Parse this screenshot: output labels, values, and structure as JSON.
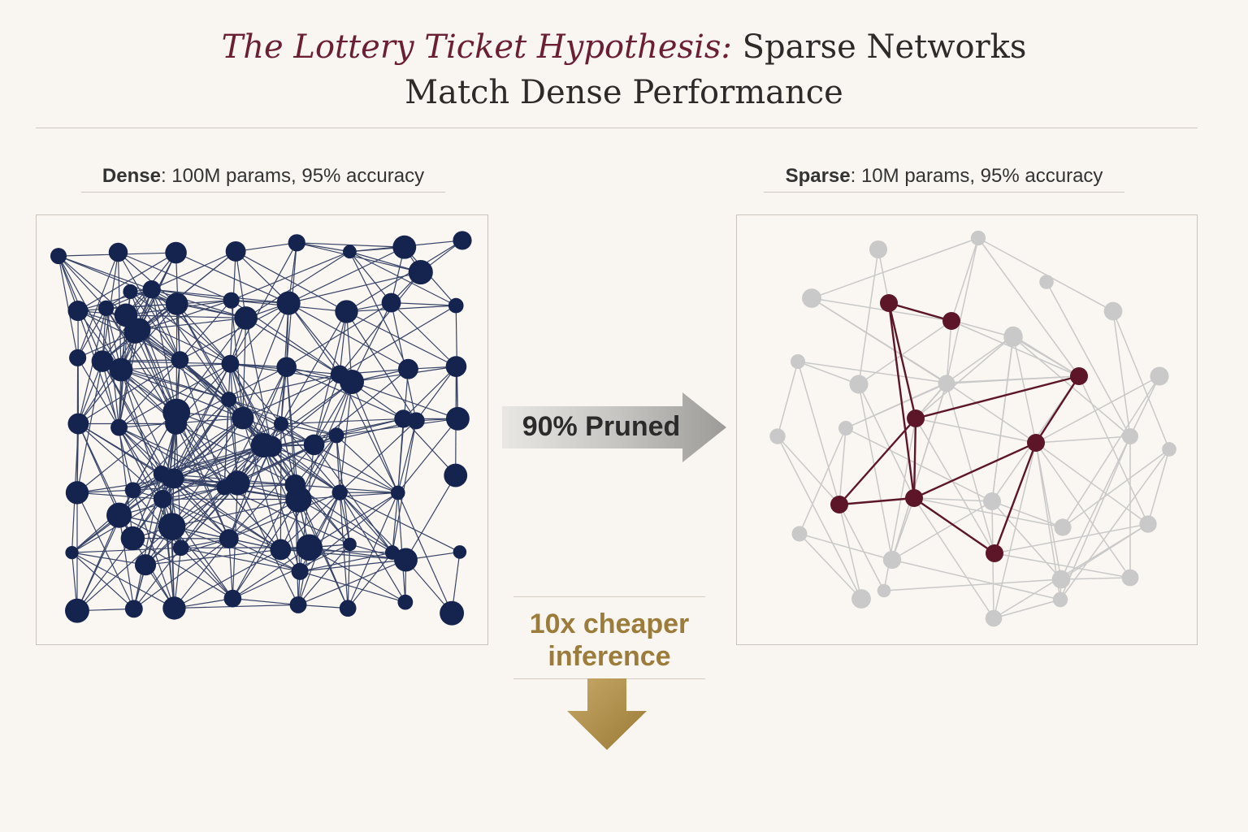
{
  "title": {
    "emphasis": "The Lottery Ticket Hypothesis:",
    "rest_line1": " Sparse Networks",
    "line2": "Match Dense Performance"
  },
  "dense": {
    "label_bold": "Dense",
    "label_rest": ": 100M params, 95% accuracy"
  },
  "sparse": {
    "label_bold": "Sparse",
    "label_rest": ": 10M params, 95% accuracy"
  },
  "prune_arrow": {
    "label": "90% Pruned"
  },
  "benefit": {
    "line1": "10x cheaper",
    "line2": "inference"
  },
  "colors": {
    "dense_node": "#15244f",
    "sparse_node": "#c9c9c9",
    "ticket_node": "#5c1628",
    "title_accent": "#6b1f33",
    "benefit_gold": "#9c7c3a"
  }
}
